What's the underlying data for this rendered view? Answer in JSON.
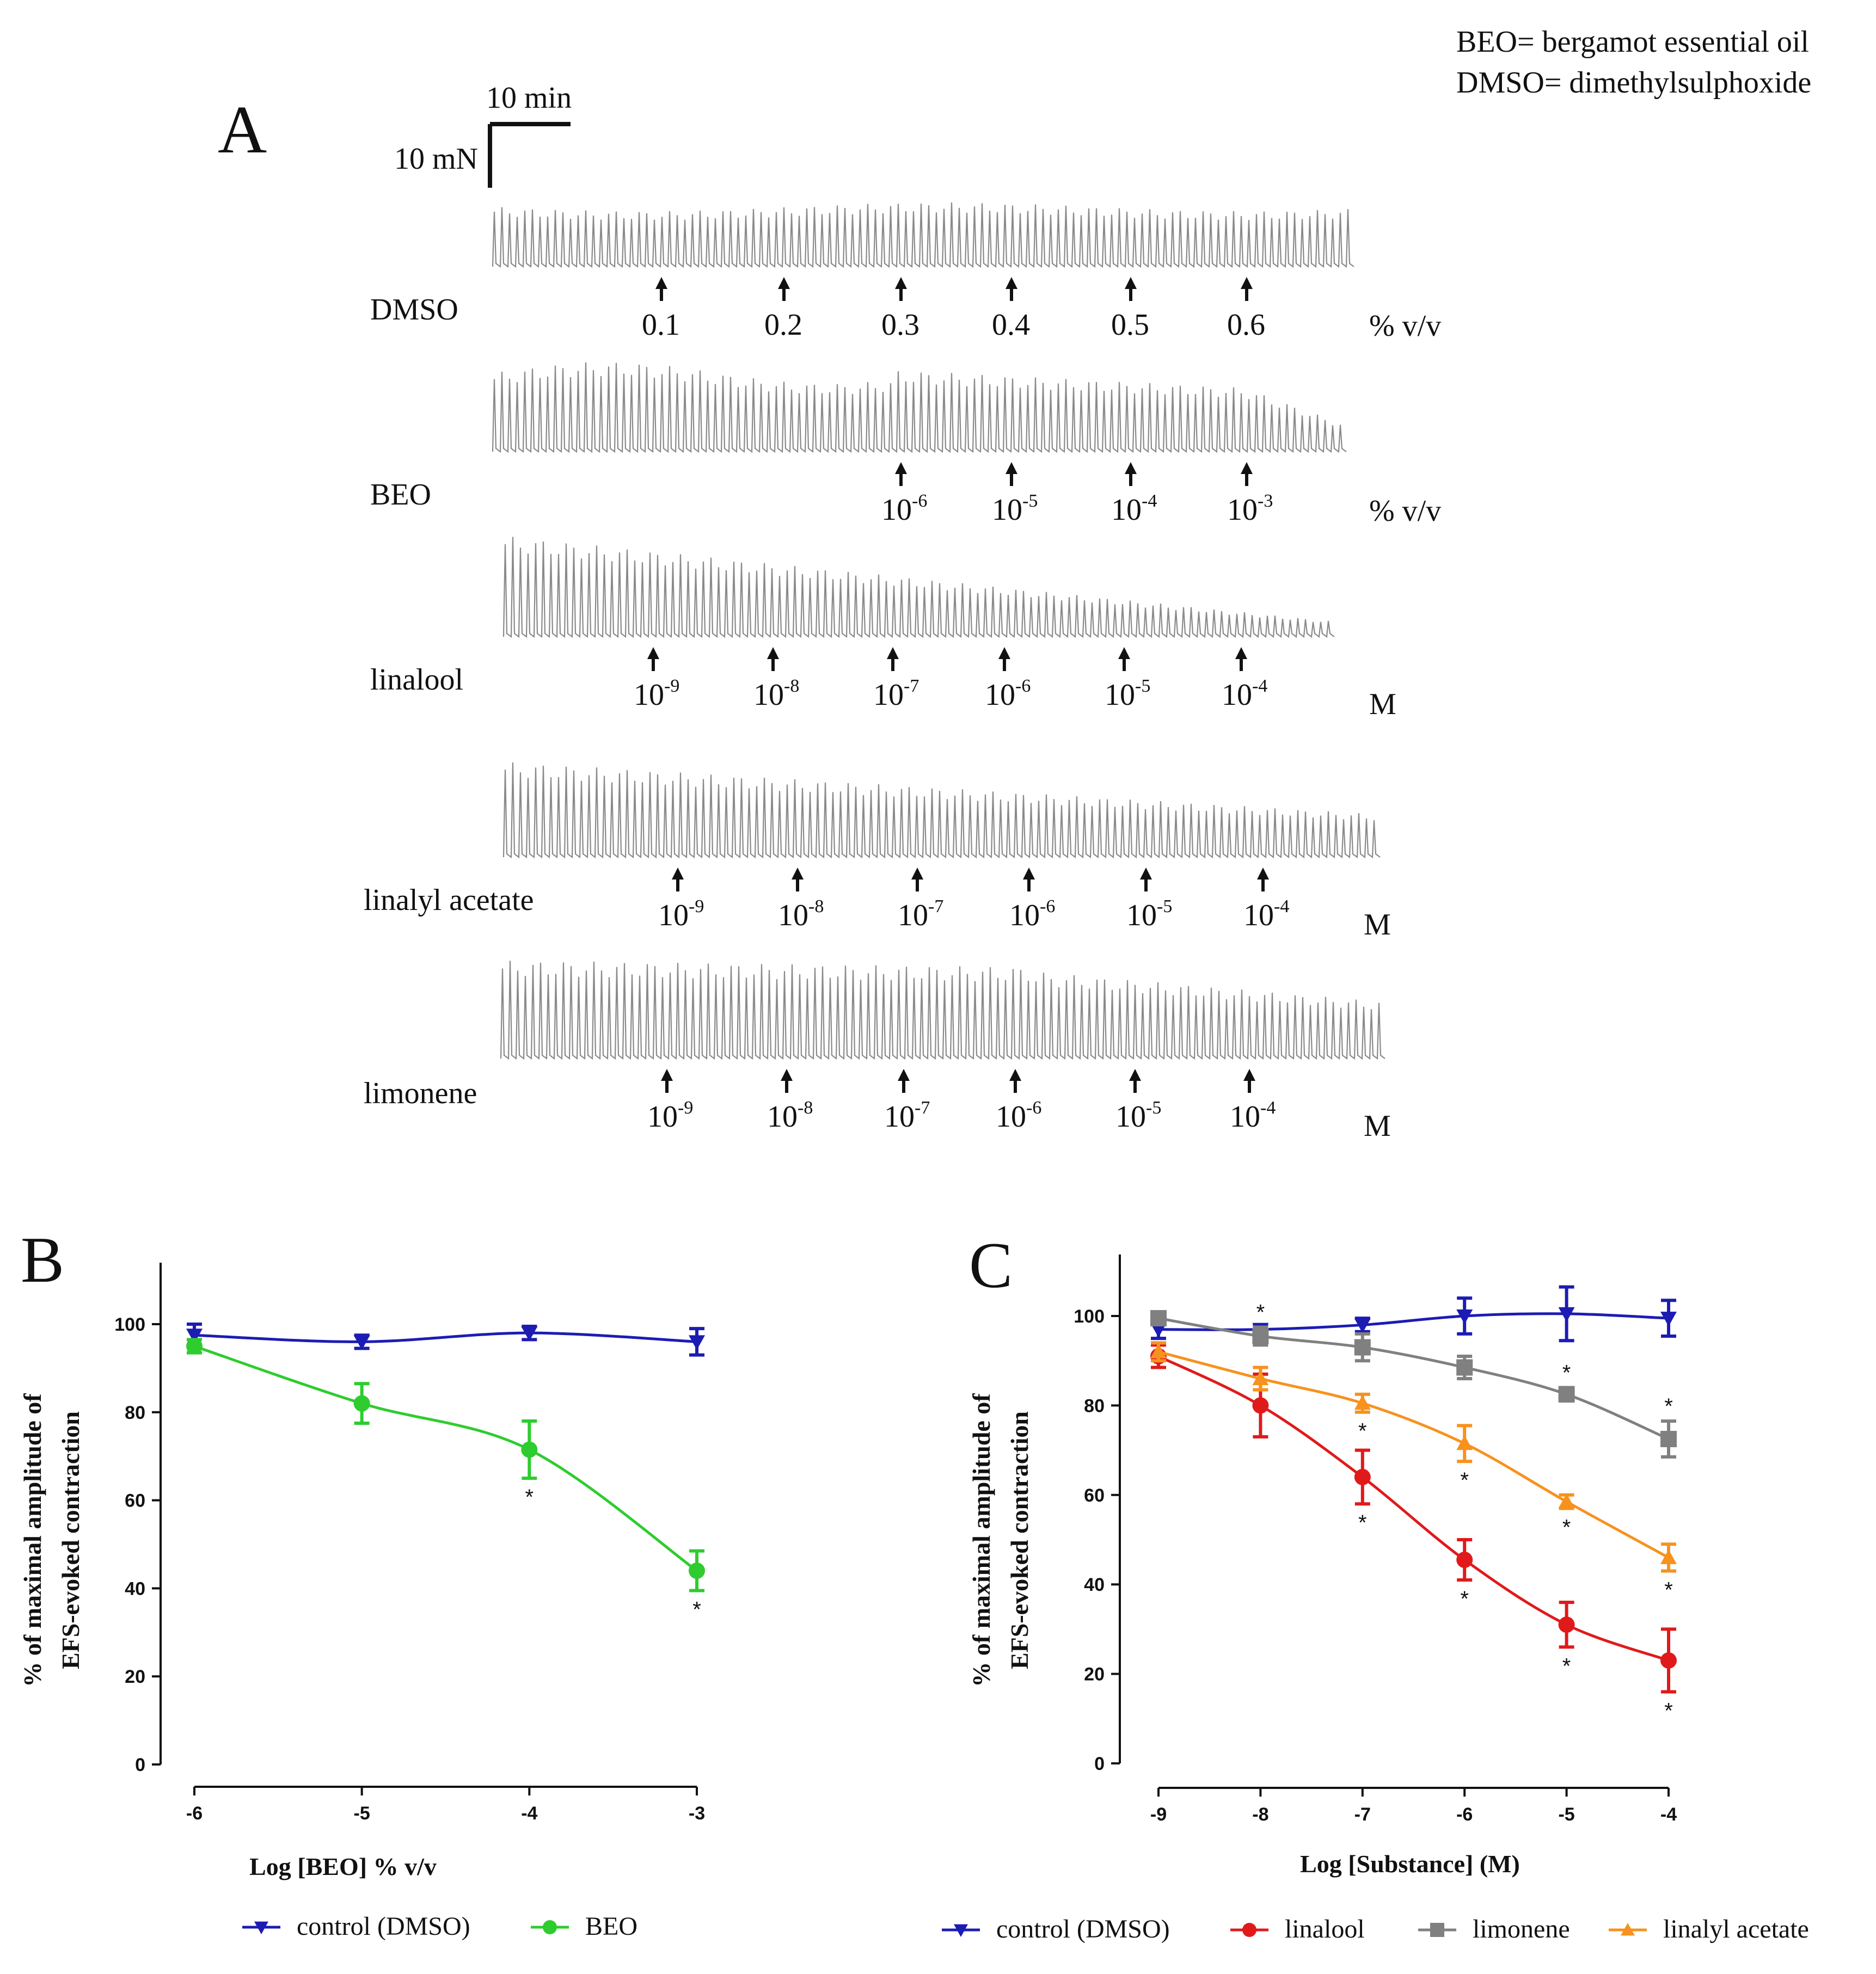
{
  "legend_note": [
    "BEO= bergamot essential oil",
    "DMSO= dimethylsulphoxide"
  ],
  "panel_a": {
    "label": "A",
    "scale_bar": {
      "time": "10 min",
      "force": "10 mN"
    },
    "traces": [
      {
        "name": "DMSO",
        "unit": "% v/v",
        "markers": [
          {
            "base": "0.1",
            "exp": ""
          },
          {
            "base": "0.2",
            "exp": ""
          },
          {
            "base": "0.3",
            "exp": ""
          },
          {
            "base": "0.4",
            "exp": ""
          },
          {
            "base": "0.5",
            "exp": ""
          },
          {
            "base": "0.6",
            "exp": ""
          }
        ]
      },
      {
        "name": "BEO",
        "unit": "% v/v",
        "markers": [
          {
            "base": "10",
            "exp": "-6"
          },
          {
            "base": "10",
            "exp": "-5"
          },
          {
            "base": "10",
            "exp": "-4"
          },
          {
            "base": "10",
            "exp": "-3"
          }
        ]
      },
      {
        "name": "linalool",
        "unit": "M",
        "markers": [
          {
            "base": "10",
            "exp": "-9"
          },
          {
            "base": "10",
            "exp": "-8"
          },
          {
            "base": "10",
            "exp": "-7"
          },
          {
            "base": "10",
            "exp": "-6"
          },
          {
            "base": "10",
            "exp": "-5"
          },
          {
            "base": "10",
            "exp": "-4"
          }
        ]
      },
      {
        "name": "linalyl acetate",
        "unit": "M",
        "markers": [
          {
            "base": "10",
            "exp": "-9"
          },
          {
            "base": "10",
            "exp": "-8"
          },
          {
            "base": "10",
            "exp": "-7"
          },
          {
            "base": "10",
            "exp": "-6"
          },
          {
            "base": "10",
            "exp": "-5"
          },
          {
            "base": "10",
            "exp": "-4"
          }
        ]
      },
      {
        "name": "limonene",
        "unit": "M",
        "markers": [
          {
            "base": "10",
            "exp": "-9"
          },
          {
            "base": "10",
            "exp": "-8"
          },
          {
            "base": "10",
            "exp": "-7"
          },
          {
            "base": "10",
            "exp": "-6"
          },
          {
            "base": "10",
            "exp": "-5"
          },
          {
            "base": "10",
            "exp": "-4"
          }
        ]
      }
    ]
  },
  "colors": {
    "control": "#1c1cb4",
    "beo": "#2ecc2e",
    "linalool": "#e01a1a",
    "limonene": "#808080",
    "linalyl": "#f7921e"
  },
  "chart_data": [
    {
      "panel": "B",
      "type": "line",
      "xlabel": "Log [BEO] % v/v",
      "ylabel": [
        "% of maximal amplitude of",
        "EFS-evoked contraction"
      ],
      "xlim": [
        -6,
        -3
      ],
      "ylim": [
        0,
        100
      ],
      "xticks": [
        -6,
        -5,
        -4,
        -3
      ],
      "yticks": [
        0,
        20,
        40,
        60,
        80,
        100
      ],
      "series": [
        {
          "name": "control (DMSO)",
          "marker": "triangle-down",
          "x": [
            -6,
            -5,
            -4,
            -3
          ],
          "y": [
            97.5,
            96,
            98,
            96
          ],
          "err": [
            2.5,
            1.5,
            1.5,
            3
          ],
          "sig": [
            false,
            false,
            false,
            false
          ]
        },
        {
          "name": "BEO",
          "marker": "circle",
          "x": [
            -6,
            -5,
            -4,
            -3
          ],
          "y": [
            95,
            82,
            71.5,
            44
          ],
          "err": [
            1.5,
            4.5,
            6.5,
            4.5
          ],
          "sig": [
            false,
            false,
            true,
            true
          ]
        }
      ]
    },
    {
      "panel": "C",
      "type": "line",
      "xlabel": "Log [Substance] (M)",
      "ylabel": [
        "% of maximal amplitude of",
        "EFS-evoked contraction"
      ],
      "xlim": [
        -9,
        -4
      ],
      "ylim": [
        0,
        100
      ],
      "xticks": [
        -9,
        -8,
        -7,
        -6,
        -5,
        -4
      ],
      "yticks": [
        0,
        20,
        40,
        60,
        80,
        100
      ],
      "series": [
        {
          "name": "control (DMSO)",
          "marker": "triangle-down",
          "x": [
            -9,
            -8,
            -7,
            -6,
            -5,
            -4
          ],
          "y": [
            97,
            97,
            98,
            100,
            100.5,
            99.5
          ],
          "err": [
            2,
            1,
            1.5,
            4,
            6,
            4
          ],
          "sig": [
            false,
            false,
            false,
            false,
            false,
            false
          ]
        },
        {
          "name": "linalool",
          "marker": "circle",
          "x": [
            -9,
            -8,
            -7,
            -6,
            -5,
            -4
          ],
          "y": [
            91,
            80,
            64,
            45.5,
            31,
            23
          ],
          "err": [
            2.5,
            7,
            6,
            4.5,
            5,
            7
          ],
          "sig": [
            false,
            false,
            true,
            true,
            true,
            true
          ]
        },
        {
          "name": "limonene",
          "marker": "square",
          "x": [
            -9,
            -8,
            -7,
            -6,
            -5,
            -4
          ],
          "y": [
            99.5,
            95.5,
            93,
            88.5,
            82.5,
            72.5
          ],
          "err": [
            1,
            2,
            3,
            2.5,
            1.5,
            4
          ],
          "sig": [
            false,
            true,
            false,
            false,
            true,
            true
          ]
        },
        {
          "name": "linalyl acetate",
          "marker": "triangle-up",
          "x": [
            -9,
            -8,
            -7,
            -6,
            -5,
            -4
          ],
          "y": [
            92,
            86,
            80.5,
            71.5,
            58.5,
            46
          ],
          "err": [
            2,
            2.5,
            2,
            4,
            1.5,
            3
          ],
          "sig": [
            false,
            false,
            true,
            true,
            true,
            true
          ]
        }
      ]
    }
  ]
}
